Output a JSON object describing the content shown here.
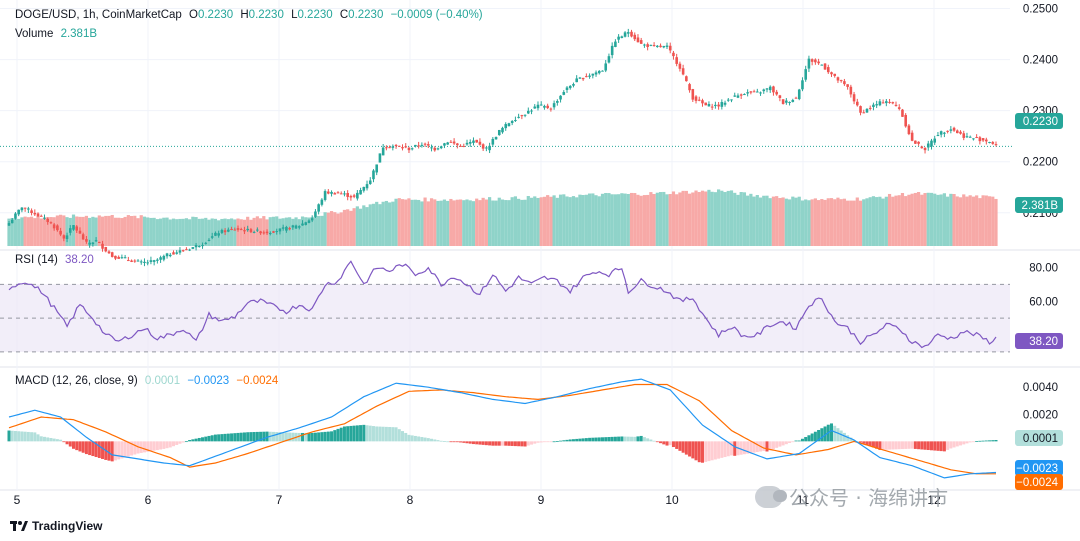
{
  "header": {
    "symbol": "DOGE/USD, 1h, CoinMarketCap",
    "o_label": "O",
    "o_value": "0.2230",
    "h_label": "H",
    "h_value": "0.2230",
    "l_label": "L",
    "l_value": "0.2230",
    "c_label": "C",
    "c_value": "0.2230",
    "change": "−0.0009 (−0.40%)",
    "volume_label": "Volume",
    "volume_value": "2.381B"
  },
  "rsi": {
    "label": "RSI (14)",
    "value": "38.20"
  },
  "macd": {
    "label": "MACD (12, 26, close, 9)",
    "hist": "0.0001",
    "macd": "−0.0023",
    "signal": "−0.0024"
  },
  "footer": {
    "brand": "TradingView"
  },
  "watermark": {
    "text": "公众号 · 海绵讲市"
  },
  "colors": {
    "up": "#26a69a",
    "down": "#ef5350",
    "rsi": "#7e57c2",
    "macd": "#2196f3",
    "signal": "#ff6d00",
    "hist_up_light": "#b2dfdb",
    "hist_down_light": "#ffcdd2"
  },
  "chart_data": [
    {
      "type": "candlestick",
      "title": "DOGE/USD, 1h, CoinMarketCap",
      "x_ticks": [
        "5",
        "6",
        "7",
        "8",
        "9",
        "10",
        "11",
        "12"
      ],
      "y_ticks": [
        "0.2500",
        "0.2400",
        "0.2300",
        "0.2200",
        "0.2100"
      ],
      "ylim": [
        0.2035,
        0.2505
      ],
      "last_price": "0.2230",
      "close_anchors": [
        [
          0,
          0.208
        ],
        [
          4,
          0.2112
        ],
        [
          9,
          0.2095
        ],
        [
          13,
          0.208
        ],
        [
          17,
          0.205
        ],
        [
          20,
          0.2075
        ],
        [
          24,
          0.204
        ],
        [
          27,
          0.2045
        ],
        [
          32,
          0.2015
        ],
        [
          36,
          0.201
        ],
        [
          41,
          0.2002
        ],
        [
          45,
          0.2005
        ],
        [
          50,
          0.202
        ],
        [
          55,
          0.2028
        ],
        [
          60,
          0.204
        ],
        [
          65,
          0.2062
        ],
        [
          70,
          0.2068
        ],
        [
          75,
          0.2065
        ],
        [
          80,
          0.2062
        ],
        [
          85,
          0.2068
        ],
        [
          90,
          0.2075
        ],
        [
          94,
          0.209
        ],
        [
          98,
          0.214
        ],
        [
          103,
          0.2138
        ],
        [
          107,
          0.213
        ],
        [
          112,
          0.2165
        ],
        [
          116,
          0.223
        ],
        [
          120,
          0.223
        ],
        [
          124,
          0.2225
        ],
        [
          128,
          0.2235
        ],
        [
          132,
          0.2225
        ],
        [
          136,
          0.224
        ],
        [
          140,
          0.223
        ],
        [
          144,
          0.224
        ],
        [
          148,
          0.2225
        ],
        [
          152,
          0.226
        ],
        [
          156,
          0.2282
        ],
        [
          160,
          0.2295
        ],
        [
          164,
          0.231
        ],
        [
          168,
          0.2305
        ],
        [
          172,
          0.2338
        ],
        [
          176,
          0.236
        ],
        [
          180,
          0.237
        ],
        [
          184,
          0.238
        ],
        [
          188,
          0.2438
        ],
        [
          192,
          0.2455
        ],
        [
          196,
          0.243
        ],
        [
          200,
          0.2425
        ],
        [
          204,
          0.2425
        ],
        [
          208,
          0.2385
        ],
        [
          212,
          0.2325
        ],
        [
          216,
          0.231
        ],
        [
          220,
          0.231
        ],
        [
          224,
          0.2325
        ],
        [
          228,
          0.2335
        ],
        [
          232,
          0.2335
        ],
        [
          236,
          0.2345
        ],
        [
          240,
          0.2315
        ],
        [
          244,
          0.2325
        ],
        [
          248,
          0.24
        ],
        [
          252,
          0.239
        ],
        [
          256,
          0.2365
        ],
        [
          260,
          0.2345
        ],
        [
          264,
          0.2295
        ],
        [
          268,
          0.231
        ],
        [
          272,
          0.232
        ],
        [
          276,
          0.2305
        ],
        [
          280,
          0.224
        ],
        [
          284,
          0.2225
        ],
        [
          288,
          0.2255
        ],
        [
          292,
          0.2265
        ],
        [
          296,
          0.225
        ],
        [
          300,
          0.2245
        ],
        [
          304,
          0.224
        ],
        [
          306,
          0.223
        ]
      ]
    },
    {
      "type": "bar",
      "title": "Volume",
      "last_value": "2.381B",
      "anchors": [
        [
          0,
          0.38
        ],
        [
          30,
          0.4
        ],
        [
          60,
          0.36
        ],
        [
          90,
          0.38
        ],
        [
          100,
          0.44
        ],
        [
          110,
          0.53
        ],
        [
          120,
          0.62
        ],
        [
          140,
          0.62
        ],
        [
          160,
          0.64
        ],
        [
          180,
          0.68
        ],
        [
          200,
          0.7
        ],
        [
          220,
          0.74
        ],
        [
          230,
          0.68
        ],
        [
          250,
          0.62
        ],
        [
          265,
          0.63
        ],
        [
          280,
          0.7
        ],
        [
          300,
          0.66
        ],
        [
          306,
          0.64
        ]
      ]
    },
    {
      "type": "line",
      "title": "RSI (14)",
      "y_ticks": [
        "80.00",
        "60.00"
      ],
      "ylim": [
        24,
        88
      ],
      "band": [
        30,
        70
      ],
      "midline": 50,
      "last_value": "38.20",
      "anchors": [
        [
          0,
          68
        ],
        [
          5,
          72
        ],
        [
          10,
          66
        ],
        [
          14,
          56
        ],
        [
          18,
          45
        ],
        [
          22,
          58
        ],
        [
          26,
          50
        ],
        [
          30,
          40
        ],
        [
          34,
          36
        ],
        [
          38,
          40
        ],
        [
          42,
          44
        ],
        [
          46,
          38
        ],
        [
          50,
          40
        ],
        [
          54,
          44
        ],
        [
          58,
          36
        ],
        [
          62,
          52
        ],
        [
          66,
          48
        ],
        [
          70,
          51
        ],
        [
          74,
          59
        ],
        [
          78,
          60
        ],
        [
          82,
          57
        ],
        [
          86,
          54
        ],
        [
          90,
          58
        ],
        [
          94,
          55
        ],
        [
          98,
          70
        ],
        [
          102,
          72
        ],
        [
          106,
          84
        ],
        [
          110,
          70
        ],
        [
          114,
          80
        ],
        [
          118,
          78
        ],
        [
          122,
          82
        ],
        [
          126,
          76
        ],
        [
          130,
          80
        ],
        [
          134,
          70
        ],
        [
          138,
          75
        ],
        [
          142,
          70
        ],
        [
          146,
          64
        ],
        [
          150,
          76
        ],
        [
          154,
          66
        ],
        [
          158,
          74
        ],
        [
          162,
          70
        ],
        [
          166,
          74
        ],
        [
          170,
          72
        ],
        [
          174,
          66
        ],
        [
          178,
          74
        ],
        [
          182,
          78
        ],
        [
          186,
          76
        ],
        [
          190,
          80
        ],
        [
          192,
          66
        ],
        [
          196,
          72
        ],
        [
          200,
          69
        ],
        [
          204,
          66
        ],
        [
          208,
          60
        ],
        [
          212,
          62
        ],
        [
          216,
          50
        ],
        [
          220,
          40
        ],
        [
          224,
          45
        ],
        [
          228,
          39
        ],
        [
          232,
          40
        ],
        [
          236,
          46
        ],
        [
          240,
          48
        ],
        [
          244,
          44
        ],
        [
          248,
          58
        ],
        [
          252,
          62
        ],
        [
          256,
          48
        ],
        [
          260,
          44
        ],
        [
          264,
          36
        ],
        [
          268,
          40
        ],
        [
          272,
          46
        ],
        [
          276,
          44
        ],
        [
          280,
          36
        ],
        [
          284,
          33
        ],
        [
          288,
          40
        ],
        [
          292,
          38
        ],
        [
          296,
          42
        ],
        [
          300,
          40
        ],
        [
          304,
          36
        ],
        [
          306,
          38
        ]
      ]
    },
    {
      "type": "line",
      "title": "MACD (12, 26, close, 9)",
      "y_ticks": [
        "0.0040",
        "0.0020"
      ],
      "ylim": [
        -0.0033,
        0.0052
      ],
      "series": [
        {
          "name": "MACD",
          "anchors": [
            [
              0,
              0.0018
            ],
            [
              8,
              0.0023
            ],
            [
              16,
              0.0018
            ],
            [
              24,
              0.0003
            ],
            [
              32,
              -0.001
            ],
            [
              40,
              -0.0013
            ],
            [
              48,
              -0.0016
            ],
            [
              56,
              -0.0018
            ],
            [
              64,
              -0.0011
            ],
            [
              72,
              -0.0004
            ],
            [
              80,
              0.0003
            ],
            [
              90,
              0.001
            ],
            [
              100,
              0.0018
            ],
            [
              110,
              0.0033
            ],
            [
              120,
              0.0043
            ],
            [
              130,
              0.004
            ],
            [
              140,
              0.0036
            ],
            [
              150,
              0.0031
            ],
            [
              160,
              0.0028
            ],
            [
              170,
              0.0033
            ],
            [
              180,
              0.0039
            ],
            [
              190,
              0.0044
            ],
            [
              196,
              0.0046
            ],
            [
              205,
              0.0038
            ],
            [
              215,
              0.0012
            ],
            [
              225,
              -0.0004
            ],
            [
              235,
              -0.0013
            ],
            [
              245,
              -0.0009
            ],
            [
              255,
              0.0008
            ],
            [
              262,
              0.0001
            ],
            [
              270,
              -0.0012
            ],
            [
              280,
              -0.0018
            ],
            [
              290,
              -0.0027
            ],
            [
              298,
              -0.0024
            ],
            [
              306,
              -0.0023
            ]
          ]
        },
        {
          "name": "Signal",
          "anchors": [
            [
              0,
              0.001
            ],
            [
              10,
              0.0018
            ],
            [
              20,
              0.0016
            ],
            [
              30,
              0.0007
            ],
            [
              40,
              -0.0004
            ],
            [
              50,
              -0.0012
            ],
            [
              56,
              -0.0019
            ],
            [
              64,
              -0.0016
            ],
            [
              74,
              -0.0009
            ],
            [
              84,
              -0.0001
            ],
            [
              94,
              0.0007
            ],
            [
              104,
              0.0013
            ],
            [
              114,
              0.0026
            ],
            [
              124,
              0.0037
            ],
            [
              134,
              0.0038
            ],
            [
              144,
              0.0036
            ],
            [
              154,
              0.0033
            ],
            [
              164,
              0.0031
            ],
            [
              174,
              0.0034
            ],
            [
              184,
              0.0038
            ],
            [
              194,
              0.0042
            ],
            [
              204,
              0.0042
            ],
            [
              214,
              0.003
            ],
            [
              224,
              0.0008
            ],
            [
              234,
              -0.0005
            ],
            [
              244,
              -0.001
            ],
            [
              254,
              -0.0006
            ],
            [
              262,
              0.0
            ],
            [
              272,
              -0.0007
            ],
            [
              282,
              -0.0014
            ],
            [
              292,
              -0.0021
            ],
            [
              300,
              -0.0024
            ],
            [
              306,
              -0.0024
            ]
          ]
        }
      ],
      "last_values": {
        "histogram": "0.0001",
        "macd": "−0.0023",
        "signal": "−0.0024"
      }
    }
  ]
}
